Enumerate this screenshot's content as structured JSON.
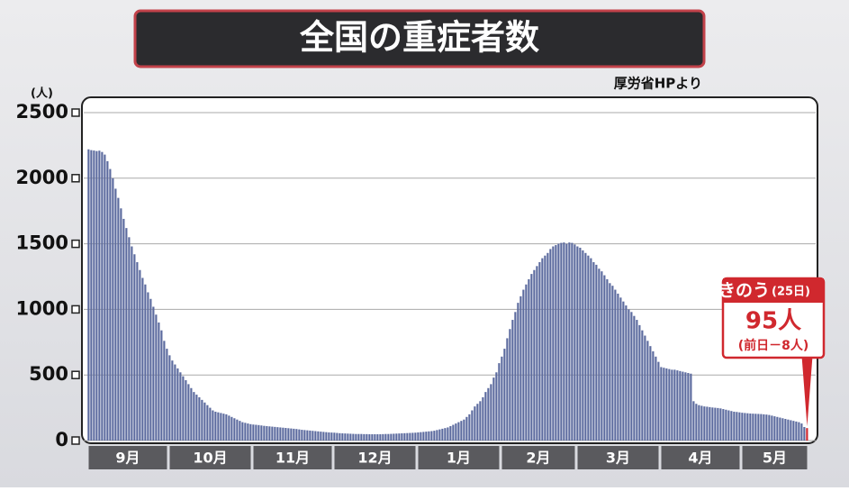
{
  "chart_data": {
    "type": "bar",
    "title": "全国の重症者数",
    "source": "厚労省HPより",
    "y_unit": "(人)",
    "annotation": {
      "header": "きのう",
      "date": "(25日)",
      "value_text": "95人",
      "change": "(前日－8人)"
    },
    "color": "#5b6a9e",
    "highlight_color": "#d0282e",
    "ylim": [
      0,
      2500
    ],
    "yticks": [
      0,
      500,
      1000,
      1500,
      2000,
      2500
    ],
    "grid": true,
    "categories": [
      "9月",
      null,
      null,
      null,
      null,
      null,
      null,
      null,
      null,
      null,
      null,
      null,
      null,
      null,
      null,
      null,
      null,
      null,
      null,
      null,
      null,
      null,
      null,
      null,
      null,
      null,
      null,
      null,
      null,
      null,
      "10月",
      null,
      null,
      null,
      null,
      null,
      null,
      null,
      null,
      null,
      null,
      null,
      null,
      null,
      null,
      null,
      null,
      null,
      null,
      null,
      null,
      null,
      null,
      null,
      null,
      null,
      null,
      null,
      null,
      null,
      null,
      "11月",
      null,
      null,
      null,
      null,
      null,
      null,
      null,
      null,
      null,
      null,
      null,
      null,
      null,
      null,
      null,
      null,
      null,
      null,
      null,
      null,
      null,
      null,
      null,
      null,
      null,
      null,
      null,
      null,
      null,
      "12月",
      null,
      null,
      null,
      null,
      null,
      null,
      null,
      null,
      null,
      null,
      null,
      null,
      null,
      null,
      null,
      null,
      null,
      null,
      null,
      null,
      null,
      null,
      null,
      null,
      null,
      null,
      null,
      null,
      null,
      null,
      "1月",
      null,
      null,
      null,
      null,
      null,
      null,
      null,
      null,
      null,
      null,
      null,
      null,
      null,
      null,
      null,
      null,
      null,
      null,
      null,
      null,
      null,
      null,
      null,
      null,
      null,
      null,
      null,
      null,
      null,
      null,
      "2月",
      null,
      null,
      null,
      null,
      null,
      null,
      null,
      null,
      null,
      null,
      null,
      null,
      null,
      null,
      null,
      null,
      null,
      null,
      null,
      null,
      null,
      null,
      null,
      null,
      null,
      null,
      null,
      "3月",
      null,
      null,
      null,
      null,
      null,
      null,
      null,
      null,
      null,
      null,
      null,
      null,
      null,
      null,
      null,
      null,
      null,
      null,
      null,
      null,
      null,
      null,
      null,
      null,
      null,
      null,
      null,
      null,
      null,
      null,
      "4月",
      null,
      null,
      null,
      null,
      null,
      null,
      null,
      null,
      null,
      null,
      null,
      null,
      null,
      null,
      null,
      null,
      null,
      null,
      null,
      null,
      null,
      null,
      null,
      null,
      null,
      null,
      null,
      null,
      null,
      "5月",
      null,
      null,
      null,
      null,
      null,
      null,
      null,
      null,
      null,
      null,
      null,
      null,
      null,
      null,
      null,
      null,
      null,
      null,
      null,
      null,
      null,
      null,
      null,
      null
    ],
    "values": [
      2220,
      2214,
      2211,
      2207,
      2210,
      2200,
      2180,
      2130,
      2070,
      2000,
      1920,
      1850,
      1770,
      1690,
      1620,
      1550,
      1480,
      1420,
      1360,
      1300,
      1240,
      1190,
      1130,
      1080,
      1020,
      960,
      900,
      840,
      760,
      700,
      650,
      610,
      580,
      550,
      520,
      490,
      460,
      430,
      400,
      370,
      350,
      330,
      310,
      290,
      270,
      250,
      230,
      220,
      215,
      210,
      205,
      200,
      190,
      180,
      170,
      160,
      150,
      140,
      135,
      130,
      125,
      122,
      120,
      118,
      115,
      112,
      110,
      108,
      106,
      104,
      102,
      100,
      98,
      96,
      94,
      92,
      90,
      88,
      85,
      82,
      80,
      78,
      76,
      74,
      72,
      70,
      68,
      66,
      64,
      62,
      61,
      60,
      58,
      56,
      55,
      54,
      53,
      52,
      51,
      50,
      50,
      50,
      49,
      49,
      48,
      48,
      48,
      48,
      48,
      49,
      50,
      50,
      51,
      52,
      53,
      54,
      55,
      56,
      57,
      58,
      59,
      60,
      62,
      64,
      66,
      68,
      70,
      72,
      75,
      80,
      85,
      90,
      95,
      100,
      110,
      120,
      130,
      140,
      150,
      160,
      180,
      200,
      230,
      260,
      280,
      300,
      330,
      370,
      400,
      430,
      480,
      520,
      590,
      640,
      700,
      780,
      850,
      920,
      980,
      1050,
      1100,
      1150,
      1190,
      1230,
      1270,
      1300,
      1330,
      1360,
      1390,
      1410,
      1430,
      1460,
      1480,
      1490,
      1500,
      1507,
      1510,
      1500,
      1510,
      1507,
      1495,
      1480,
      1470,
      1450,
      1430,
      1410,
      1390,
      1360,
      1340,
      1310,
      1290,
      1260,
      1230,
      1200,
      1180,
      1150,
      1120,
      1090,
      1060,
      1030,
      1000,
      980,
      950,
      920,
      880,
      840,
      800,
      760,
      720,
      680,
      640,
      600,
      560,
      555,
      550,
      545,
      540,
      540,
      535,
      530,
      525,
      520,
      515,
      510,
      300,
      280,
      270,
      265,
      260,
      258,
      255,
      252,
      250,
      248,
      245,
      240,
      235,
      230,
      225,
      220,
      218,
      215,
      212,
      210,
      208,
      206,
      205,
      204,
      203,
      202,
      200,
      198,
      195,
      190,
      185,
      180,
      175,
      170,
      165,
      160,
      155,
      150,
      145,
      140,
      130,
      103,
      95
    ]
  }
}
